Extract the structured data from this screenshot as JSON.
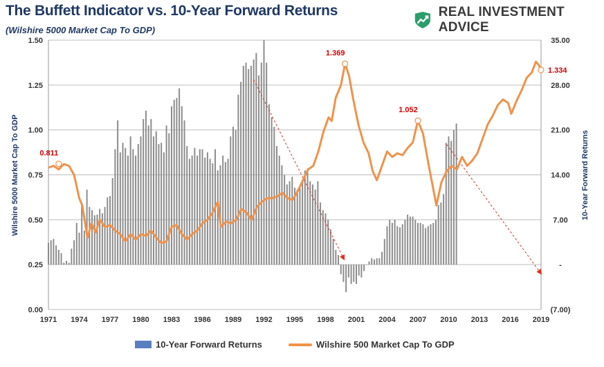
{
  "header": {
    "title": "The Buffett Indicator vs. 10-Year Forward Returns",
    "subtitle": "(Wilshire 5000 Market Cap To GDP)",
    "brand": "REAL INVESTMENT ADVICE",
    "brand_logo_icon": "rising-chart-logo-icon"
  },
  "legend": {
    "bars_label": "10-Year Forward Returns",
    "line_label": "Wilshire 500 Market Cap To GDP"
  },
  "chart_data": {
    "type": "bar+line",
    "x_ticks": [
      "1971",
      "1974",
      "1977",
      "1980",
      "1983",
      "1986",
      "1989",
      "1992",
      "1995",
      "1998",
      "2001",
      "2004",
      "2007",
      "2010",
      "2013",
      "2016",
      "2019"
    ],
    "xlim": [
      1971,
      2019
    ],
    "y_left": {
      "label": "Wilshire 5000 Market Cap To GDP",
      "ylim": [
        0,
        1.5
      ],
      "ticks": [
        "0.00",
        "0.25",
        "0.50",
        "0.75",
        "1.00",
        "1.25",
        "1.50"
      ]
    },
    "y_right": {
      "label": "10-Year Forward Returns",
      "ylim": [
        -7,
        35
      ],
      "ticks": [
        "(7.00)",
        "-",
        "7.00",
        "14.00",
        "21.00",
        "28.00",
        "35.00"
      ]
    },
    "grid": true,
    "legend_position": "bottom",
    "colors": {
      "bars": "#8c8c8c",
      "legend_bar": "#5a7fc0",
      "line": "#f0924a",
      "annotation": "#d00000",
      "trend": "#e03020"
    },
    "series": [
      {
        "name": "10-Year Forward Returns",
        "kind": "bar",
        "axis": "right",
        "step": 0.25,
        "x_start": 1971,
        "values": [
          3.4,
          3.8,
          4.0,
          3.0,
          2.3,
          1.8,
          0.3,
          0.6,
          0.3,
          2.5,
          3.8,
          6.5,
          5.0,
          9.3,
          5.3,
          11.7,
          9.0,
          8.5,
          7.7,
          7.8,
          8.7,
          8.0,
          9.0,
          10.5,
          10.7,
          13.5,
          18.0,
          22.5,
          17.5,
          19.0,
          18.2,
          17.0,
          20.0,
          18.0,
          17.0,
          18.8,
          20.0,
          22.7,
          24.0,
          21.7,
          22.7,
          20.0,
          20.8,
          18.8,
          19.0,
          17.5,
          21.7,
          20.5,
          24.7,
          25.7,
          26.0,
          27.5,
          24.7,
          22.5,
          18.5,
          16.5,
          17.0,
          18.2,
          17.0,
          18.0,
          18.0,
          16.7,
          17.5,
          16.5,
          15.8,
          18.0,
          14.7,
          15.5,
          17.0,
          16.0,
          16.5,
          20.0,
          21.5,
          21.0,
          26.5,
          28.5,
          31.0,
          31.5,
          30.5,
          31.0,
          32.0,
          33.0,
          29.5,
          31.5,
          35.0,
          31.5,
          25.0,
          23.0,
          21.5,
          18.5,
          17.0,
          15.5,
          14.0,
          12.5,
          13.0,
          13.7,
          12.0,
          11.7,
          12.0,
          13.0,
          14.7,
          15.0,
          13.0,
          12.5,
          11.7,
          13.0,
          9.7,
          8.5,
          8.0,
          7.0,
          5.5,
          4.0,
          2.3,
          1.5,
          -1.5,
          -2.7,
          -4.3,
          -2.0,
          -3.0,
          -2.7,
          -3.0,
          -1.7,
          -2.0,
          -1.0,
          0.0,
          0.5,
          1.0,
          0.8,
          1.0,
          1.0,
          2.0,
          4.0,
          6.0,
          7.0,
          6.5,
          7.0,
          6.0,
          5.8,
          6.3,
          7.0,
          7.8,
          7.5,
          7.5,
          7.0,
          6.5,
          6.5,
          6.3,
          5.7,
          6.0,
          6.3,
          6.5,
          7.0,
          9.3,
          9.7,
          11.0,
          19.0,
          20.0,
          19.3,
          21.0,
          22.0
        ]
      },
      {
        "name": "Wilshire 500 Market Cap To GDP",
        "kind": "line",
        "axis": "left",
        "points": [
          [
            1971,
            0.79
          ],
          [
            1971.5,
            0.8
          ],
          [
            1972,
            0.78
          ],
          [
            1972.5,
            0.81
          ],
          [
            1973,
            0.8
          ],
          [
            1973.5,
            0.75
          ],
          [
            1974,
            0.62
          ],
          [
            1974.3,
            0.58
          ],
          [
            1974.8,
            0.4
          ],
          [
            1975.2,
            0.48
          ],
          [
            1975.6,
            0.43
          ],
          [
            1976,
            0.5
          ],
          [
            1976.5,
            0.46
          ],
          [
            1977,
            0.47
          ],
          [
            1977.5,
            0.44
          ],
          [
            1978,
            0.42
          ],
          [
            1978.5,
            0.38
          ],
          [
            1979,
            0.42
          ],
          [
            1979.5,
            0.39
          ],
          [
            1980,
            0.42
          ],
          [
            1980.5,
            0.41
          ],
          [
            1981,
            0.44
          ],
          [
            1981.5,
            0.4
          ],
          [
            1982,
            0.37
          ],
          [
            1982.5,
            0.38
          ],
          [
            1983,
            0.46
          ],
          [
            1983.5,
            0.47
          ],
          [
            1984,
            0.42
          ],
          [
            1984.5,
            0.39
          ],
          [
            1985,
            0.42
          ],
          [
            1985.5,
            0.44
          ],
          [
            1986,
            0.48
          ],
          [
            1986.5,
            0.5
          ],
          [
            1987,
            0.54
          ],
          [
            1987.5,
            0.6
          ],
          [
            1987.8,
            0.46
          ],
          [
            1988.3,
            0.49
          ],
          [
            1988.8,
            0.48
          ],
          [
            1989.3,
            0.5
          ],
          [
            1989.8,
            0.56
          ],
          [
            1990.3,
            0.54
          ],
          [
            1990.8,
            0.5
          ],
          [
            1991.3,
            0.57
          ],
          [
            1991.8,
            0.6
          ],
          [
            1992.3,
            0.62
          ],
          [
            1992.8,
            0.62
          ],
          [
            1993.3,
            0.63
          ],
          [
            1993.8,
            0.65
          ],
          [
            1994.3,
            0.62
          ],
          [
            1994.8,
            0.61
          ],
          [
            1995.3,
            0.66
          ],
          [
            1995.8,
            0.72
          ],
          [
            1996.3,
            0.78
          ],
          [
            1996.8,
            0.8
          ],
          [
            1997.3,
            0.88
          ],
          [
            1997.8,
            0.99
          ],
          [
            1998.3,
            1.07
          ],
          [
            1998.6,
            1.05
          ],
          [
            1999,
            1.18
          ],
          [
            1999.5,
            1.25
          ],
          [
            1999.9,
            1.369
          ],
          [
            2000.3,
            1.3
          ],
          [
            2000.7,
            1.17
          ],
          [
            2001.2,
            1.03
          ],
          [
            2001.7,
            0.93
          ],
          [
            2002.2,
            0.87
          ],
          [
            2002.6,
            0.77
          ],
          [
            2003,
            0.72
          ],
          [
            2003.5,
            0.8
          ],
          [
            2004,
            0.88
          ],
          [
            2004.5,
            0.85
          ],
          [
            2005,
            0.87
          ],
          [
            2005.5,
            0.86
          ],
          [
            2006,
            0.9
          ],
          [
            2006.5,
            0.93
          ],
          [
            2007,
            1.052
          ],
          [
            2007.5,
            0.98
          ],
          [
            2008,
            0.82
          ],
          [
            2008.4,
            0.7
          ],
          [
            2008.8,
            0.58
          ],
          [
            2009.3,
            0.71
          ],
          [
            2009.8,
            0.77
          ],
          [
            2010.3,
            0.8
          ],
          [
            2010.8,
            0.78
          ],
          [
            2011.3,
            0.85
          ],
          [
            2011.8,
            0.8
          ],
          [
            2012.3,
            0.83
          ],
          [
            2012.8,
            0.87
          ],
          [
            2013.3,
            0.95
          ],
          [
            2013.8,
            1.03
          ],
          [
            2014.3,
            1.08
          ],
          [
            2014.8,
            1.14
          ],
          [
            2015.3,
            1.17
          ],
          [
            2015.8,
            1.15
          ],
          [
            2016.1,
            1.09
          ],
          [
            2016.6,
            1.16
          ],
          [
            2017.1,
            1.22
          ],
          [
            2017.6,
            1.29
          ],
          [
            2018.1,
            1.32
          ],
          [
            2018.5,
            1.38
          ],
          [
            2018.8,
            1.36
          ],
          [
            2019,
            1.334
          ]
        ]
      }
    ],
    "annotations": [
      {
        "x": 1972,
        "y": 0.811,
        "text": "0.811"
      },
      {
        "x": 1999.9,
        "y": 1.369,
        "text": "1.369"
      },
      {
        "x": 2007,
        "y": 1.052,
        "text": "1.052"
      },
      {
        "x": 2019,
        "y": 1.334,
        "text": "1.334"
      }
    ],
    "trend_arrows": [
      {
        "from": [
          1991,
          1.28
        ],
        "to": [
          1999.8,
          0.28
        ]
      },
      {
        "from": [
          2009.8,
          0.92
        ],
        "to": [
          2019,
          0.2
        ]
      }
    ]
  }
}
